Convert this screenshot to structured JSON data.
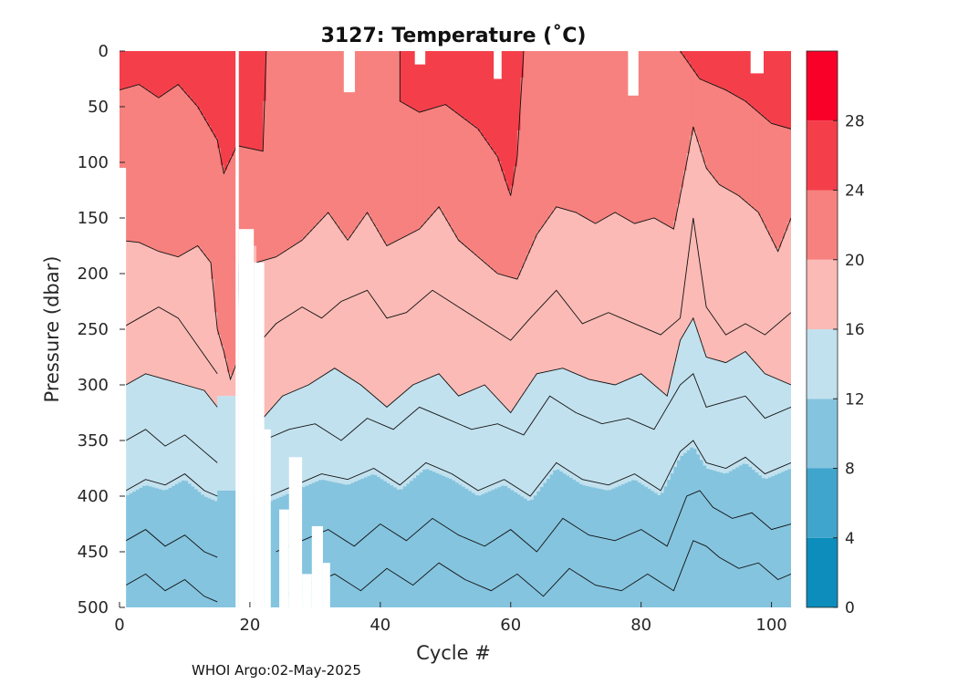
{
  "chart_data": {
    "type": "heatmap",
    "subtype": "filled-contour",
    "title": "3127:  Temperature (˚C)",
    "xlabel": "Cycle #",
    "ylabel": "Pressure (dbar)",
    "xlim": [
      0,
      103
    ],
    "ylim": [
      0,
      500
    ],
    "y_reversed": true,
    "x_ticks": [
      0,
      20,
      40,
      60,
      80,
      100
    ],
    "y_ticks": [
      0,
      50,
      100,
      150,
      200,
      250,
      300,
      350,
      400,
      450,
      500
    ],
    "grid": false,
    "colorbar": {
      "label_ticks": [
        0,
        4,
        8,
        12,
        16,
        20,
        24,
        28
      ],
      "range": [
        0,
        32
      ],
      "levels": [
        {
          "from": 0,
          "to": 4,
          "color": "#0C8DBB"
        },
        {
          "from": 4,
          "to": 8,
          "color": "#40A5CC"
        },
        {
          "from": 8,
          "to": 12,
          "color": "#84C4DF"
        },
        {
          "from": 12,
          "to": 16,
          "color": "#C2E1EE"
        },
        {
          "from": 16,
          "to": 20,
          "color": "#FBBAB5"
        },
        {
          "from": 20,
          "to": 24,
          "color": "#F7817E"
        },
        {
          "from": 24,
          "to": 28,
          "color": "#F43F4A"
        },
        {
          "from": 28,
          "to": 32,
          "color": "#F90028"
        }
      ]
    },
    "contour_isotherms": [
      {
        "temp": 26,
        "points": [
          [
            0,
            35
          ],
          [
            3,
            30
          ],
          [
            6,
            42
          ],
          [
            9,
            30
          ],
          [
            12,
            50
          ],
          [
            15,
            80
          ],
          [
            16,
            110
          ],
          [
            18,
            85
          ],
          [
            22,
            90
          ],
          [
            22.5,
            0
          ]
        ]
      },
      {
        "temp": 26,
        "points": [
          [
            43,
            0
          ],
          [
            43,
            45
          ],
          [
            46,
            55
          ],
          [
            50,
            48
          ],
          [
            55,
            70
          ],
          [
            58,
            95
          ],
          [
            60,
            130
          ],
          [
            61,
            95
          ],
          [
            62,
            0
          ]
        ]
      },
      {
        "temp": 24,
        "points": [
          [
            86,
            0
          ],
          [
            89,
            25
          ],
          [
            93,
            35
          ],
          [
            96,
            45
          ],
          [
            100,
            65
          ],
          [
            103,
            70
          ]
        ]
      },
      {
        "temp": 22,
        "points": [
          [
            0,
            170
          ],
          [
            3,
            172
          ],
          [
            6,
            180
          ],
          [
            9,
            185
          ],
          [
            12,
            175
          ],
          [
            14,
            190
          ],
          [
            15,
            250
          ],
          [
            16,
            270
          ],
          [
            17,
            295
          ],
          [
            18,
            280
          ],
          [
            18.5,
            160
          ]
        ]
      },
      {
        "temp": 22,
        "points": [
          [
            21,
            190
          ],
          [
            24,
            185
          ],
          [
            28,
            170
          ],
          [
            32,
            145
          ],
          [
            35,
            170
          ],
          [
            38,
            145
          ],
          [
            41,
            175
          ],
          [
            46,
            160
          ],
          [
            49,
            140
          ],
          [
            52,
            170
          ],
          [
            55,
            185
          ],
          [
            58,
            200
          ],
          [
            61,
            205
          ],
          [
            64,
            165
          ],
          [
            67,
            140
          ],
          [
            70,
            145
          ],
          [
            73,
            155
          ],
          [
            76,
            145
          ],
          [
            79,
            155
          ],
          [
            82,
            150
          ],
          [
            85,
            160
          ],
          [
            87,
            100
          ],
          [
            88,
            68
          ],
          [
            90,
            105
          ],
          [
            92,
            120
          ],
          [
            95,
            130
          ],
          [
            98,
            145
          ],
          [
            101,
            180
          ],
          [
            103,
            150
          ]
        ]
      },
      {
        "temp": 20,
        "points": [
          [
            0,
            250
          ],
          [
            3,
            240
          ],
          [
            6,
            230
          ],
          [
            9,
            240
          ],
          [
            12,
            265
          ],
          [
            15,
            290
          ]
        ]
      },
      {
        "temp": 20,
        "points": [
          [
            21,
            265
          ],
          [
            24,
            245
          ],
          [
            28,
            230
          ],
          [
            31,
            240
          ],
          [
            34,
            225
          ],
          [
            38,
            215
          ],
          [
            41,
            240
          ],
          [
            44,
            235
          ],
          [
            48,
            215
          ],
          [
            52,
            230
          ],
          [
            56,
            245
          ],
          [
            60,
            260
          ],
          [
            63,
            240
          ],
          [
            67,
            215
          ],
          [
            71,
            245
          ],
          [
            75,
            235
          ],
          [
            79,
            245
          ],
          [
            83,
            255
          ],
          [
            86,
            240
          ],
          [
            88,
            150
          ],
          [
            90,
            230
          ],
          [
            93,
            255
          ],
          [
            96,
            245
          ],
          [
            99,
            255
          ],
          [
            103,
            235
          ]
        ]
      },
      {
        "temp": 18,
        "points": [
          [
            1,
            300
          ],
          [
            4,
            290
          ],
          [
            7,
            295
          ],
          [
            10,
            300
          ],
          [
            13,
            305
          ],
          [
            15,
            320
          ]
        ]
      },
      {
        "temp": 18,
        "points": [
          [
            22,
            330
          ],
          [
            25,
            310
          ],
          [
            29,
            300
          ],
          [
            33,
            285
          ],
          [
            37,
            300
          ],
          [
            41,
            320
          ],
          [
            45,
            300
          ],
          [
            49,
            290
          ],
          [
            52,
            310
          ],
          [
            56,
            300
          ],
          [
            60,
            325
          ],
          [
            64,
            290
          ],
          [
            68,
            285
          ],
          [
            72,
            295
          ],
          [
            76,
            300
          ],
          [
            80,
            290
          ],
          [
            84,
            310
          ],
          [
            86,
            260
          ],
          [
            88,
            240
          ],
          [
            90,
            275
          ],
          [
            93,
            280
          ],
          [
            96,
            270
          ],
          [
            99,
            290
          ],
          [
            103,
            300
          ]
        ]
      },
      {
        "temp": 16,
        "points": [
          [
            1,
            350
          ],
          [
            4,
            340
          ],
          [
            7,
            355
          ],
          [
            10,
            345
          ],
          [
            13,
            360
          ],
          [
            15,
            370
          ]
        ]
      },
      {
        "temp": 16,
        "points": [
          [
            22,
            350
          ],
          [
            26,
            340
          ],
          [
            30,
            335
          ],
          [
            34,
            350
          ],
          [
            38,
            330
          ],
          [
            42,
            340
          ],
          [
            46,
            320
          ],
          [
            50,
            330
          ],
          [
            54,
            340
          ],
          [
            58,
            335
          ],
          [
            62,
            345
          ],
          [
            66,
            310
          ],
          [
            70,
            325
          ],
          [
            74,
            335
          ],
          [
            78,
            330
          ],
          [
            82,
            340
          ],
          [
            86,
            300
          ],
          [
            88,
            290
          ],
          [
            90,
            320
          ],
          [
            93,
            315
          ],
          [
            96,
            310
          ],
          [
            99,
            330
          ],
          [
            103,
            320
          ]
        ]
      },
      {
        "temp": 14,
        "points": [
          [
            1,
            395
          ],
          [
            4,
            385
          ],
          [
            7,
            390
          ],
          [
            10,
            380
          ],
          [
            13,
            395
          ],
          [
            15,
            400
          ]
        ]
      },
      {
        "temp": 14,
        "points": [
          [
            23,
            400
          ],
          [
            27,
            390
          ],
          [
            31,
            380
          ],
          [
            35,
            385
          ],
          [
            39,
            375
          ],
          [
            43,
            390
          ],
          [
            47,
            370
          ],
          [
            51,
            380
          ],
          [
            55,
            395
          ],
          [
            59,
            385
          ],
          [
            63,
            400
          ],
          [
            67,
            370
          ],
          [
            71,
            385
          ],
          [
            75,
            390
          ],
          [
            79,
            380
          ],
          [
            83,
            395
          ],
          [
            86,
            360
          ],
          [
            88,
            350
          ],
          [
            90,
            370
          ],
          [
            93,
            375
          ],
          [
            96,
            365
          ],
          [
            99,
            380
          ],
          [
            103,
            370
          ]
        ]
      },
      {
        "temp": 12,
        "points": [
          [
            1,
            440
          ],
          [
            4,
            430
          ],
          [
            7,
            445
          ],
          [
            10,
            435
          ],
          [
            13,
            450
          ],
          [
            15,
            455
          ]
        ]
      },
      {
        "temp": 12,
        "points": [
          [
            24,
            450
          ],
          [
            28,
            440
          ],
          [
            32,
            430
          ],
          [
            36,
            445
          ],
          [
            40,
            425
          ],
          [
            44,
            440
          ],
          [
            48,
            420
          ],
          [
            52,
            435
          ],
          [
            56,
            445
          ],
          [
            60,
            430
          ],
          [
            64,
            450
          ],
          [
            68,
            420
          ],
          [
            72,
            435
          ],
          [
            76,
            440
          ],
          [
            80,
            430
          ],
          [
            84,
            445
          ],
          [
            87,
            400
          ],
          [
            89,
            395
          ],
          [
            91,
            410
          ],
          [
            94,
            420
          ],
          [
            97,
            415
          ],
          [
            100,
            430
          ],
          [
            103,
            425
          ]
        ]
      },
      {
        "temp": 10,
        "points": [
          [
            1,
            480
          ],
          [
            4,
            470
          ],
          [
            7,
            485
          ],
          [
            10,
            475
          ],
          [
            13,
            490
          ],
          [
            15,
            495
          ]
        ]
      },
      {
        "temp": 10,
        "points": [
          [
            25,
            490
          ],
          [
            29,
            480
          ],
          [
            33,
            470
          ],
          [
            37,
            485
          ],
          [
            41,
            465
          ],
          [
            45,
            480
          ],
          [
            49,
            460
          ],
          [
            53,
            475
          ],
          [
            57,
            485
          ],
          [
            61,
            470
          ],
          [
            65,
            490
          ],
          [
            69,
            465
          ],
          [
            73,
            480
          ],
          [
            77,
            485
          ],
          [
            81,
            470
          ],
          [
            85,
            485
          ],
          [
            88,
            440
          ],
          [
            90,
            445
          ],
          [
            92,
            455
          ],
          [
            95,
            465
          ],
          [
            98,
            460
          ],
          [
            101,
            475
          ],
          [
            103,
            470
          ]
        ]
      }
    ],
    "no_data_regions": [
      {
        "x": [
          17.8,
          18.3
        ],
        "y": [
          0,
          500
        ]
      },
      {
        "x": [
          18.3,
          20.6
        ],
        "y": [
          160,
          500
        ]
      },
      {
        "x": [
          20.6,
          22.2
        ],
        "y": [
          190,
          500
        ]
      },
      {
        "x": [
          22.2,
          23.2
        ],
        "y": [
          340,
          500
        ]
      },
      {
        "x": [
          24.5,
          26.0
        ],
        "y": [
          412,
          500
        ]
      },
      {
        "x": [
          26.0,
          28.0
        ],
        "y": [
          365,
          500
        ]
      },
      {
        "x": [
          28.0,
          29.5
        ],
        "y": [
          470,
          500
        ]
      },
      {
        "x": [
          29.5,
          31.2
        ],
        "y": [
          427,
          500
        ]
      },
      {
        "x": [
          31.2,
          32.3
        ],
        "y": [
          460,
          500
        ]
      },
      {
        "x": [
          34.4,
          36.1
        ],
        "y": [
          0,
          37
        ]
      },
      {
        "x": [
          45.3,
          46.9
        ],
        "y": [
          0,
          12
        ]
      },
      {
        "x": [
          57.4,
          58.6
        ],
        "y": [
          0,
          25
        ]
      },
      {
        "x": [
          78.0,
          79.6
        ],
        "y": [
          0,
          40
        ]
      },
      {
        "x": [
          96.8,
          98.8
        ],
        "y": [
          0,
          20
        ]
      },
      {
        "x": [
          0,
          1.0
        ],
        "y": [
          105,
          500
        ]
      }
    ]
  },
  "footer": {
    "text": "WHOI Argo:02-May-2025"
  }
}
